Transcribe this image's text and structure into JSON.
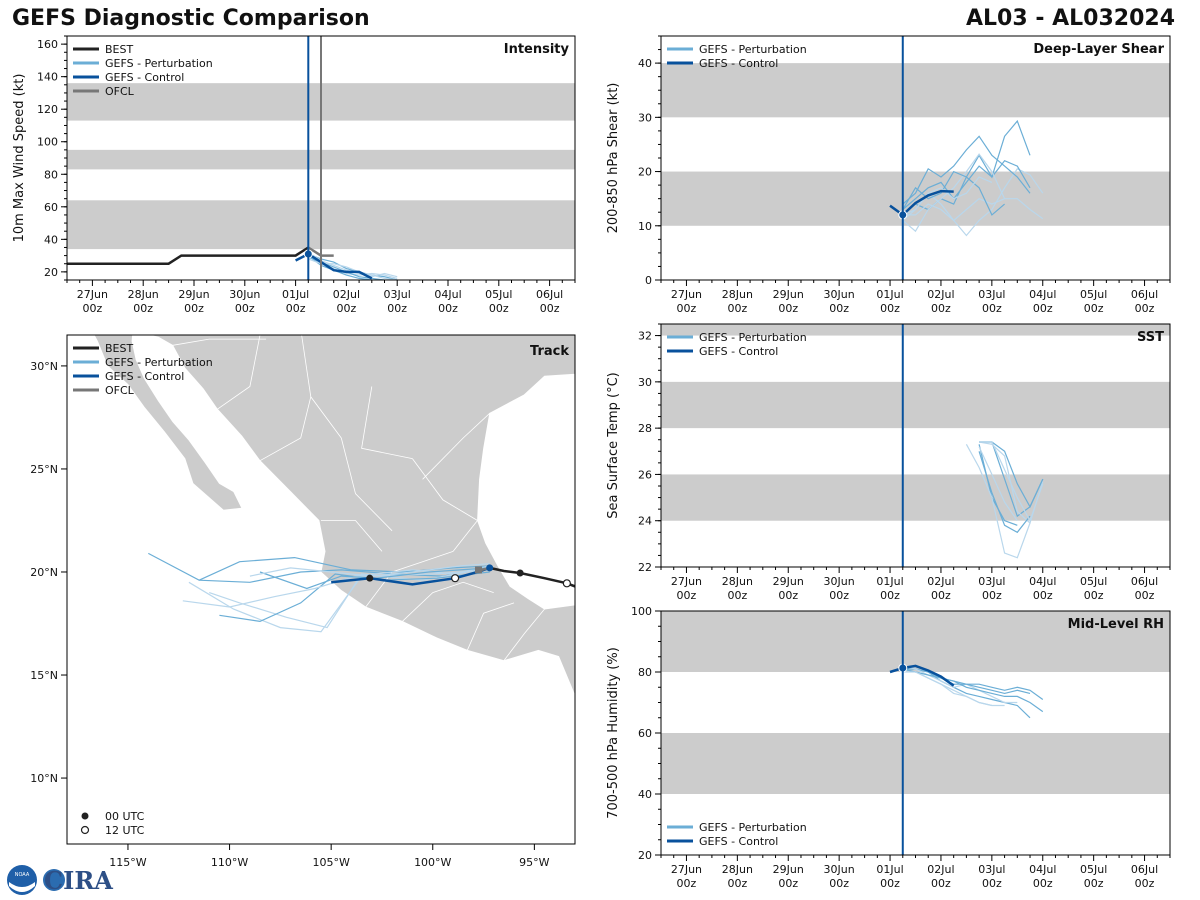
{
  "header": {
    "title": "GEFS Diagnostic Comparison",
    "storm_id": "AL03 - AL032024"
  },
  "logo": {
    "noaa_text": "NOAA",
    "cira_text": "CIRA"
  },
  "colors": {
    "best": "#222222",
    "perturbation": "#6baed6",
    "perturbation_light": "#b9d7ec",
    "control": "#08519c",
    "ofcl": "#777777",
    "band": "#cccccc",
    "land": "#cccccc"
  },
  "time_axis": {
    "start_day": 26.5,
    "end_day": 36.5,
    "major_days": [
      27,
      28,
      29,
      30,
      31,
      32,
      33,
      34,
      35,
      36
    ],
    "date_labels": [
      "27Jun",
      "28Jun",
      "29Jun",
      "30Jun",
      "01Jul",
      "02Jul",
      "03Jul",
      "04Jul",
      "05Jul",
      "06Jul"
    ],
    "hour_label": "00z",
    "init_day": 31.25,
    "ofcl_init_day": 31.5
  },
  "chart_data": [
    {
      "id": "intensity",
      "type": "line",
      "panel_label": "Intensity",
      "ylabel": "10m Max Wind Speed (kt)",
      "ylim": [
        15,
        165
      ],
      "yticks": [
        20,
        40,
        60,
        80,
        100,
        120,
        140,
        160
      ],
      "bands": [
        [
          34,
          64
        ],
        [
          83,
          95
        ],
        [
          113,
          136
        ]
      ],
      "legend": [
        "BEST",
        "GEFS - Perturbation",
        "GEFS - Control",
        "OFCL"
      ],
      "best": {
        "x": [
          26.5,
          28.5,
          28.75,
          31.0,
          31.25
        ],
        "y": [
          25,
          25,
          30,
          30,
          35
        ]
      },
      "control": {
        "x": [
          31.0,
          31.25,
          31.5,
          31.75,
          32.0,
          32.25,
          32.5
        ],
        "y": [
          27,
          31,
          26,
          21,
          20,
          20,
          16
        ]
      },
      "ofcl": {
        "x": [
          31.25,
          31.5,
          31.75
        ],
        "y": [
          35,
          30,
          30
        ]
      },
      "perturbations": [
        {
          "x": [
            31.25,
            31.5,
            31.75,
            32.0,
            32.25,
            32.5,
            32.75,
            33.0
          ],
          "y": [
            31,
            28,
            26,
            22,
            20,
            18,
            17,
            15
          ]
        },
        {
          "x": [
            31.25,
            31.5,
            31.75,
            32.0,
            32.25,
            32.5,
            32.75,
            33.0
          ],
          "y": [
            30,
            25,
            22,
            19,
            18,
            19,
            18,
            16
          ]
        },
        {
          "x": [
            31.25,
            31.5,
            31.75,
            32.0,
            32.25,
            32.5,
            32.75
          ],
          "y": [
            29,
            26,
            23,
            20,
            17,
            16,
            15
          ]
        },
        {
          "x": [
            31.25,
            31.5,
            31.75,
            32.0,
            32.25,
            32.5,
            32.75,
            33.0
          ],
          "y": [
            32,
            27,
            24,
            21,
            19,
            17,
            19,
            17
          ]
        },
        {
          "x": [
            31.25,
            31.5,
            31.75,
            32.0,
            32.25,
            32.5
          ],
          "y": [
            30,
            24,
            21,
            18,
            16,
            15
          ]
        },
        {
          "x": [
            31.25,
            31.5,
            31.75,
            32.0,
            32.25,
            32.5,
            32.75,
            33.0
          ],
          "y": [
            28,
            25,
            25,
            23,
            20,
            18,
            16,
            15
          ]
        }
      ]
    },
    {
      "id": "shear",
      "type": "line",
      "panel_label": "Deep-Layer Shear",
      "ylabel": "200-850 hPa Shear (kt)",
      "ylim": [
        0,
        45
      ],
      "yticks": [
        0,
        10,
        20,
        30,
        40
      ],
      "bands": [
        [
          10,
          20
        ],
        [
          30,
          40
        ]
      ],
      "legend": [
        "GEFS - Perturbation",
        "GEFS - Control"
      ],
      "control": {
        "x": [
          31.0,
          31.25,
          31.5,
          31.75,
          32.0,
          32.25
        ],
        "y": [
          13.7,
          12.0,
          14.2,
          15.6,
          16.4,
          16.3
        ]
      },
      "perturbations": [
        {
          "x": [
            31.25,
            31.5,
            31.75,
            32.0,
            32.25,
            32.5,
            32.75,
            33.0,
            33.25,
            33.5,
            33.75
          ],
          "y": [
            12,
            14,
            13,
            15,
            14,
            19,
            23,
            19,
            26.5,
            29.3,
            23
          ]
        },
        {
          "x": [
            31.25,
            31.5,
            31.75,
            32.0,
            32.25,
            32.5,
            32.75,
            33.0,
            33.25,
            33.5,
            33.75,
            34.0
          ],
          "y": [
            11,
            13,
            16,
            14,
            11,
            8.2,
            11,
            13,
            17,
            20.5,
            19.4,
            16
          ]
        },
        {
          "x": [
            31.25,
            31.5,
            31.75,
            32.0,
            32.25,
            32.5,
            32.75,
            33.0,
            33.25,
            33.5,
            33.75
          ],
          "y": [
            13,
            15,
            17,
            18,
            15,
            18,
            21,
            19,
            22,
            21,
            17
          ]
        },
        {
          "x": [
            31.25,
            31.5,
            31.75,
            32.0,
            32.25,
            32.5,
            32.75,
            33.0,
            33.25
          ],
          "y": [
            11,
            9,
            13,
            15,
            17,
            20,
            23.2,
            20,
            15
          ]
        },
        {
          "x": [
            31.25,
            31.5,
            31.75,
            32.0,
            32.25,
            32.5,
            32.75,
            33.0,
            33.25,
            33.5,
            33.75
          ],
          "y": [
            14,
            16,
            20.5,
            19,
            21,
            24,
            26.5,
            23,
            21,
            19,
            16
          ]
        },
        {
          "x": [
            31.25,
            31.5,
            31.75,
            32.0,
            32.25,
            32.5,
            32.75,
            33.0,
            33.25,
            33.5,
            33.75,
            34.0
          ],
          "y": [
            12,
            12,
            14,
            13,
            11,
            13,
            15,
            14,
            15,
            15,
            13,
            11.3
          ]
        },
        {
          "x": [
            31.25,
            31.5,
            31.75,
            32.0,
            32.25,
            32.5,
            32.75,
            33.0,
            33.25
          ],
          "y": [
            13,
            17,
            15,
            16,
            20,
            19,
            17,
            12,
            14
          ]
        },
        {
          "x": [
            31.25,
            31.5,
            31.75,
            32.0,
            32.25,
            32.5,
            32.75,
            33.0
          ],
          "y": [
            12,
            13,
            16,
            17,
            15,
            16,
            19,
            18
          ]
        }
      ]
    },
    {
      "id": "sst",
      "type": "line",
      "panel_label": "SST",
      "ylabel": "Sea Surface Temp (°C)",
      "ylim": [
        22,
        32.5
      ],
      "yticks": [
        22,
        24,
        26,
        28,
        30,
        32
      ],
      "bands": [
        [
          24,
          26
        ],
        [
          28,
          30
        ],
        [
          32,
          33
        ]
      ],
      "legend": [
        "GEFS - Perturbation",
        "GEFS - Control"
      ],
      "perturbations": [
        {
          "x": [
            32.75,
            33.0,
            33.25,
            33.5,
            33.75,
            34.0
          ],
          "y": [
            27.4,
            27.4,
            25.8,
            24.2,
            24.6,
            25.8
          ]
        },
        {
          "x": [
            32.75,
            33.0,
            33.25,
            33.5,
            33.75,
            34.0
          ],
          "y": [
            27.4,
            27.3,
            26.8,
            24.4,
            23.9,
            25.7
          ]
        },
        {
          "x": [
            32.75,
            33.0,
            33.25,
            33.5
          ],
          "y": [
            27.3,
            25.0,
            24.0,
            23.8
          ]
        },
        {
          "x": [
            32.5,
            32.75,
            33.0,
            33.25,
            33.5,
            33.75
          ],
          "y": [
            27.3,
            26.3,
            25.0,
            22.6,
            22.4,
            23.9
          ]
        },
        {
          "x": [
            32.75,
            33.0,
            33.25,
            33.5,
            33.75,
            34.0
          ],
          "y": [
            27.4,
            27.4,
            27.0,
            25.6,
            24.6,
            25.8
          ]
        },
        {
          "x": [
            32.75,
            33.0,
            33.25,
            33.5
          ],
          "y": [
            27.2,
            26.0,
            24.8,
            24.0
          ]
        },
        {
          "x": [
            32.75,
            33.0,
            33.25,
            33.5,
            33.75
          ],
          "y": [
            27.0,
            25.2,
            23.8,
            23.5,
            24.2
          ]
        },
        {
          "x": [
            32.75,
            33.0,
            33.25,
            33.5,
            33.75,
            34.0
          ],
          "y": [
            27.4,
            27.4,
            26.2,
            25.0,
            24.0,
            25.6
          ]
        }
      ]
    },
    {
      "id": "rh",
      "type": "line",
      "panel_label": "Mid-Level RH",
      "ylabel": "700-500 hPa Humidity (%)",
      "ylim": [
        20,
        100
      ],
      "yticks": [
        20,
        40,
        60,
        80,
        100
      ],
      "bands": [
        [
          40,
          60
        ],
        [
          80,
          100
        ]
      ],
      "legend": [
        "GEFS - Perturbation",
        "GEFS - Control"
      ],
      "control": {
        "x": [
          31.0,
          31.25,
          31.5,
          31.75,
          32.0,
          32.25
        ],
        "y": [
          80,
          81.3,
          82,
          80.5,
          78.5,
          75.5
        ]
      },
      "perturbations": [
        {
          "x": [
            31.25,
            31.5,
            31.75,
            32.0,
            32.25,
            32.5,
            32.75,
            33.0,
            33.25,
            33.5,
            33.75,
            34.0
          ],
          "y": [
            81,
            82,
            80,
            78,
            77,
            76,
            76,
            75,
            74,
            75,
            74,
            71
          ]
        },
        {
          "x": [
            31.25,
            31.5,
            31.75,
            32.0,
            32.25,
            32.5,
            32.75,
            33.0,
            33.25
          ],
          "y": [
            81,
            80,
            78,
            76,
            74,
            72,
            70,
            69,
            69
          ]
        },
        {
          "x": [
            31.25,
            31.5,
            31.75,
            32.0,
            32.25,
            32.5,
            32.75,
            33.0,
            33.25,
            33.5,
            33.75
          ],
          "y": [
            81,
            81,
            80,
            77,
            75,
            73,
            72,
            71,
            70,
            69,
            65
          ]
        },
        {
          "x": [
            31.25,
            31.5,
            31.75,
            32.0,
            32.25,
            32.5,
            32.75,
            33.0,
            33.25,
            33.5
          ],
          "y": [
            82,
            81,
            79,
            77,
            75,
            76,
            74,
            72,
            70,
            70
          ]
        },
        {
          "x": [
            31.25,
            31.5,
            31.75,
            32.0,
            32.25,
            32.5,
            32.75,
            33.0,
            33.25,
            33.5,
            33.75,
            34.0
          ],
          "y": [
            81,
            80,
            79,
            78,
            77,
            75,
            74,
            73,
            72,
            72,
            70,
            67
          ]
        },
        {
          "x": [
            31.25,
            31.5,
            31.75,
            32.0,
            32.25,
            32.5,
            32.75,
            33.0
          ],
          "y": [
            80,
            80,
            78,
            76,
            73,
            72,
            70,
            69
          ]
        },
        {
          "x": [
            31.25,
            31.5,
            31.75,
            32.0,
            32.25,
            32.5,
            32.75,
            33.0,
            33.25,
            33.5,
            33.75
          ],
          "y": [
            81,
            82,
            80,
            78,
            76,
            76,
            75,
            74,
            73,
            74,
            73
          ]
        }
      ]
    },
    {
      "id": "track",
      "type": "map",
      "panel_label": "Track",
      "legend": [
        "BEST",
        "GEFS - Perturbation",
        "GEFS - Control",
        "OFCL"
      ],
      "marker_legend": [
        "00 UTC",
        "12 UTC"
      ],
      "lon_range": [
        -118,
        -93
      ],
      "lat_range": [
        6.8,
        31.5
      ],
      "lon_ticks": [
        -115,
        -110,
        -105,
        -100,
        -95
      ],
      "lon_labels": [
        "115°W",
        "110°W",
        "105°W",
        "100°W",
        "95°W"
      ],
      "lat_ticks": [
        10,
        15,
        20,
        25,
        30
      ],
      "lat_labels": [
        "10°N",
        "15°N",
        "20°N",
        "25°N",
        "30°N"
      ],
      "best": {
        "lon": [
          -93.0,
          -93.4,
          -94.5,
          -95.7,
          -96.5,
          -97.2
        ],
        "lat": [
          19.3,
          19.45,
          19.7,
          19.95,
          20.05,
          20.2
        ]
      },
      "best_00utc": [
        [
          -95.7,
          19.95
        ]
      ],
      "best_12utc": [
        [
          -93.4,
          19.45
        ]
      ],
      "control": {
        "lon": [
          -97.2,
          -97.8,
          -98.9,
          -101.0,
          -103.1,
          -105.0
        ],
        "lat": [
          20.2,
          20.0,
          19.7,
          19.4,
          19.7,
          19.5
        ]
      },
      "control_00utc": [
        [
          -97.2,
          20.2
        ],
        [
          -103.1,
          19.7
        ]
      ],
      "control_12utc": [
        [
          -98.9,
          19.7
        ]
      ],
      "ofcl": {
        "lon": [
          -97.2,
          -97.6
        ],
        "lat": [
          20.2,
          20.1
        ]
      },
      "perturbations": [
        {
          "lon": [
            -97.2,
            -99.5,
            -102.0,
            -104.5,
            -106.5,
            -109.0,
            -111.5,
            -114.0
          ],
          "lat": [
            20.2,
            19.8,
            19.9,
            20.1,
            20.0,
            19.5,
            19.6,
            20.9
          ]
        },
        {
          "lon": [
            -97.2,
            -100.0,
            -103.5,
            -105.5,
            -107.5,
            -109.8,
            -112.0
          ],
          "lat": [
            20.1,
            19.9,
            19.8,
            17.1,
            17.3,
            18.2,
            19.5
          ]
        },
        {
          "lon": [
            -97.2,
            -99.0,
            -101.5,
            -104.0,
            -106.8,
            -109.5,
            -111.5
          ],
          "lat": [
            20.3,
            20.2,
            20.0,
            20.1,
            20.7,
            20.5,
            19.6
          ]
        },
        {
          "lon": [
            -97.2,
            -100.5,
            -103.5,
            -105.2,
            -107.2,
            -109.5,
            -111.0
          ],
          "lat": [
            20.2,
            19.6,
            19.9,
            17.3,
            17.8,
            18.5,
            19.0
          ]
        },
        {
          "lon": [
            -97.2,
            -99.8,
            -102.5,
            -104.8,
            -106.5,
            -108.5,
            -110.5
          ],
          "lat": [
            20.0,
            19.7,
            19.6,
            19.9,
            18.5,
            17.6,
            17.9
          ]
        },
        {
          "lon": [
            -97.2,
            -99.0,
            -101.0,
            -103.8,
            -105.8,
            -107.8,
            -110.0,
            -112.3
          ],
          "lat": [
            20.3,
            19.9,
            20.1,
            19.8,
            19.2,
            18.8,
            18.3,
            18.6
          ]
        },
        {
          "lon": [
            -97.2,
            -100.2,
            -102.8,
            -104.5,
            -106.2,
            -108.5
          ],
          "lat": [
            20.2,
            20.0,
            19.7,
            19.8,
            19.2,
            20.0
          ]
        },
        {
          "lon": [
            -97.2,
            -98.6,
            -101.0,
            -103.0,
            -105.0,
            -107.0,
            -109.0
          ],
          "lat": [
            20.4,
            20.3,
            20.0,
            19.8,
            20.0,
            20.2,
            19.8
          ]
        }
      ]
    }
  ]
}
